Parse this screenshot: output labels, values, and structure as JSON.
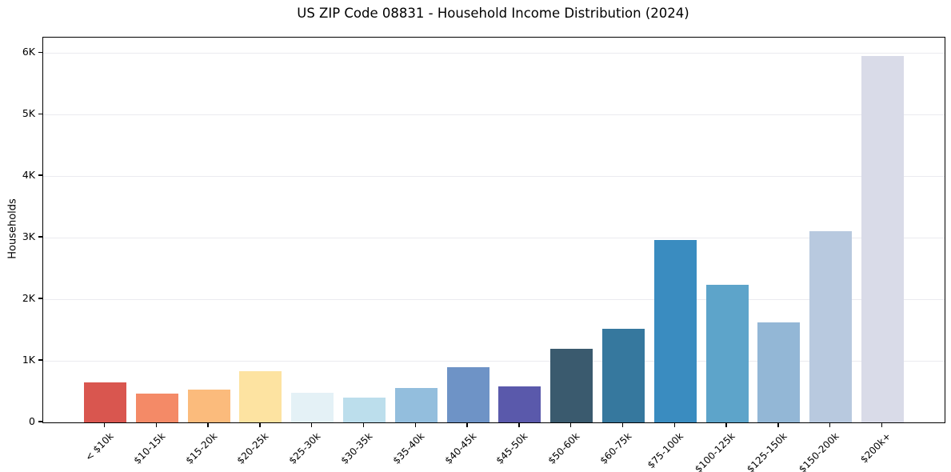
{
  "chart_data": {
    "type": "bar",
    "title": "US ZIP Code 08831 - Household Income Distribution (2024)",
    "xlabel": "",
    "ylabel": "Households",
    "categories": [
      "< $10k",
      "$10-15k",
      "$15-20k",
      "$20-25k",
      "$25-30k",
      "$30-35k",
      "$35-40k",
      "$40-45k",
      "$45-50k",
      "$50-60k",
      "$60-75k",
      "$75-100k",
      "$100-125k",
      "$125-150k",
      "$150-200k",
      "$200k+"
    ],
    "values": [
      650,
      470,
      530,
      830,
      480,
      400,
      560,
      900,
      585,
      1200,
      1520,
      2960,
      2240,
      1620,
      3110,
      5950
    ],
    "bar_colors": [
      "#d9564f",
      "#f48a67",
      "#fbbb7c",
      "#fde3a1",
      "#e4f1f6",
      "#bcdeec",
      "#93bedd",
      "#6e93c6",
      "#5a59ab",
      "#3a5a6e",
      "#36789e",
      "#3a8cc0",
      "#5da4ca",
      "#93b7d6",
      "#b8c9df",
      "#d9dbe8"
    ],
    "ytick_labels": [
      "0",
      "1K",
      "2K",
      "3K",
      "4K",
      "5K",
      "6K"
    ],
    "ytick_values": [
      0,
      1000,
      2000,
      3000,
      4000,
      5000,
      6000
    ],
    "ylim": [
      0,
      6250
    ],
    "grid": "horizontal",
    "gridline_color": "#ebebf0",
    "background_color": "#ffffff",
    "spine_color": "#000000",
    "legend": "none"
  }
}
